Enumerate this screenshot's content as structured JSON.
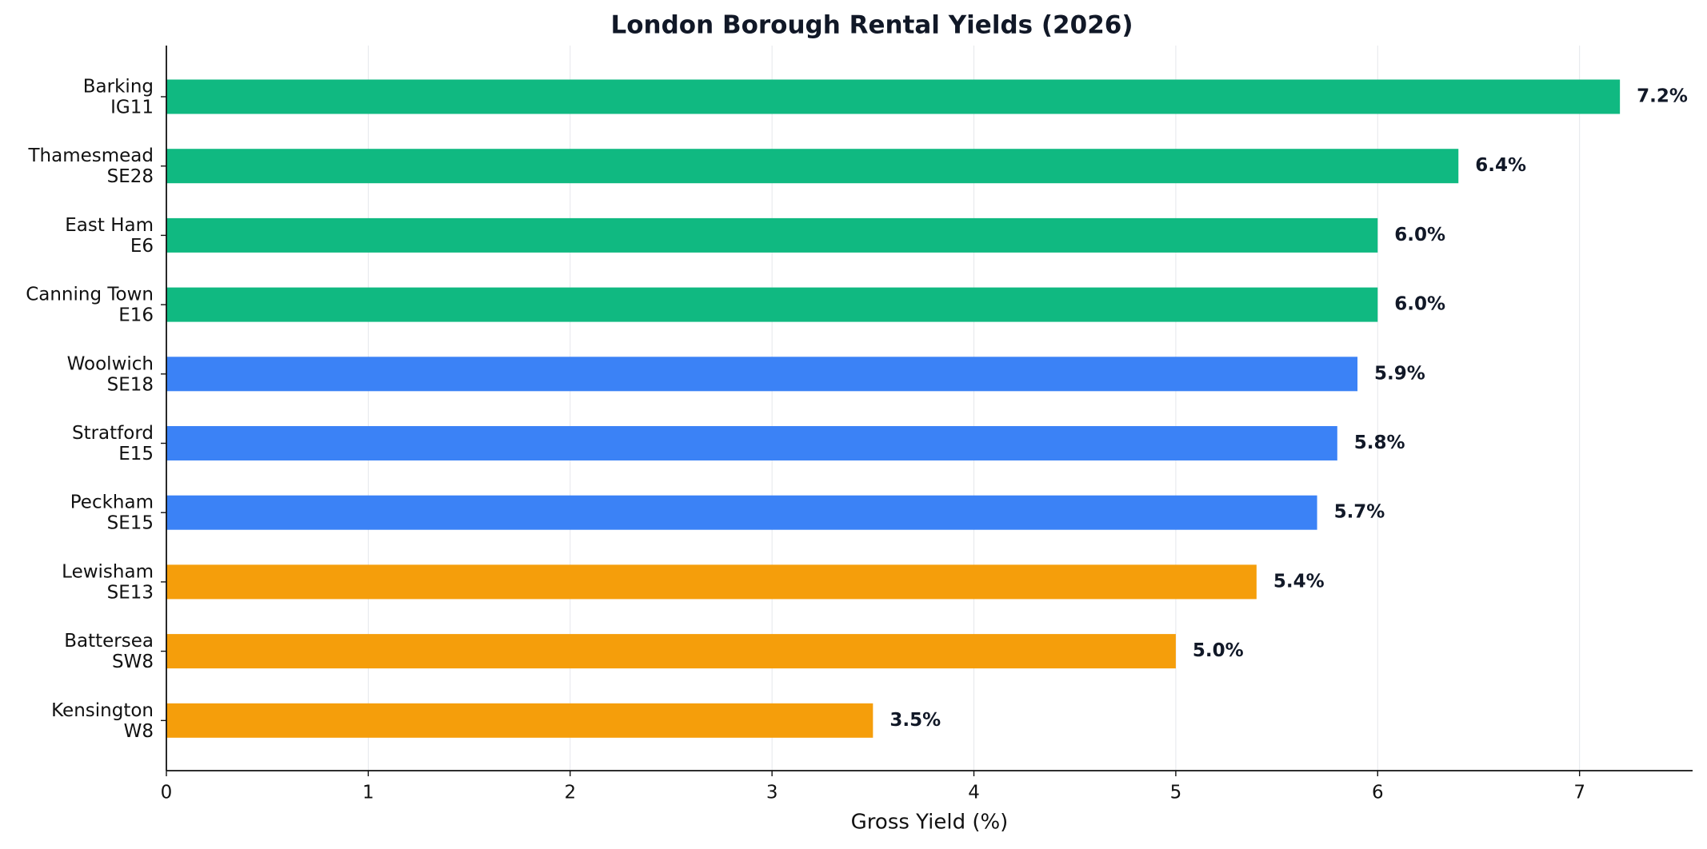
{
  "chart_data": {
    "type": "barh",
    "title": "London Borough Rental Yields (2026)",
    "xlabel": "Gross Yield (%)",
    "categories": [
      [
        "Barking",
        "IG11"
      ],
      [
        "Thamesmead",
        "SE28"
      ],
      [
        "East Ham",
        "E6"
      ],
      [
        "Canning Town",
        "E16"
      ],
      [
        "Woolwich",
        "SE18"
      ],
      [
        "Stratford",
        "E15"
      ],
      [
        "Peckham",
        "SE15"
      ],
      [
        "Lewisham",
        "SE13"
      ],
      [
        "Battersea",
        "SW8"
      ],
      [
        "Kensington",
        "W8"
      ]
    ],
    "values": [
      7.2,
      6.4,
      6.0,
      6.0,
      5.9,
      5.8,
      5.7,
      5.4,
      5.0,
      3.5
    ],
    "value_labels": [
      "7.2%",
      "6.4%",
      "6.0%",
      "6.0%",
      "5.9%",
      "5.8%",
      "5.7%",
      "5.4%",
      "5.0%",
      "3.5%"
    ],
    "colors": [
      "#10b981",
      "#10b981",
      "#10b981",
      "#10b981",
      "#3b82f6",
      "#3b82f6",
      "#3b82f6",
      "#f59e0b",
      "#f59e0b",
      "#f59e0b"
    ],
    "xlim": [
      0,
      7.56
    ],
    "xticks": [
      0,
      1,
      2,
      3,
      4,
      5,
      6,
      7
    ],
    "grid": true
  }
}
